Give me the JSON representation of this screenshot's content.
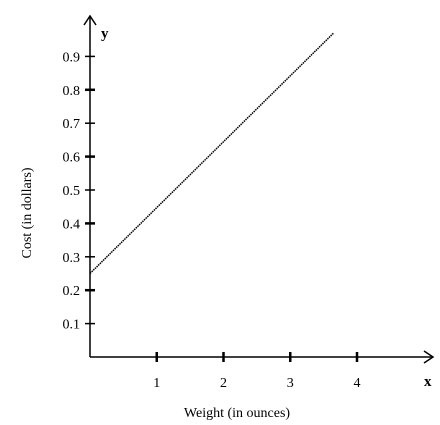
{
  "chart_data": {
    "type": "line",
    "xlabel": "Weight (in ounces)",
    "ylabel": "Cost (in dollars)",
    "x_axis_letter": "x",
    "y_axis_letter": "y",
    "x_ticks": [
      "1",
      "2",
      "3",
      "4"
    ],
    "x_tick_values": [
      1,
      2,
      3,
      4
    ],
    "y_ticks": [
      "0.1",
      "0.2",
      "0.3",
      "0.4",
      "0.5",
      "0.6",
      "0.7",
      "0.8",
      "0.9"
    ],
    "y_tick_values": [
      0.1,
      0.2,
      0.3,
      0.4,
      0.5,
      0.6,
      0.7,
      0.8,
      0.9
    ],
    "xlim": [
      0,
      4.2
    ],
    "ylim": [
      0,
      0.98
    ],
    "grid": false,
    "series": [
      {
        "x": [
          0,
          3.65
        ],
        "y": [
          0.25,
          0.97
        ]
      }
    ],
    "colors": {
      "line": "#000000",
      "axis": "#000000"
    }
  }
}
